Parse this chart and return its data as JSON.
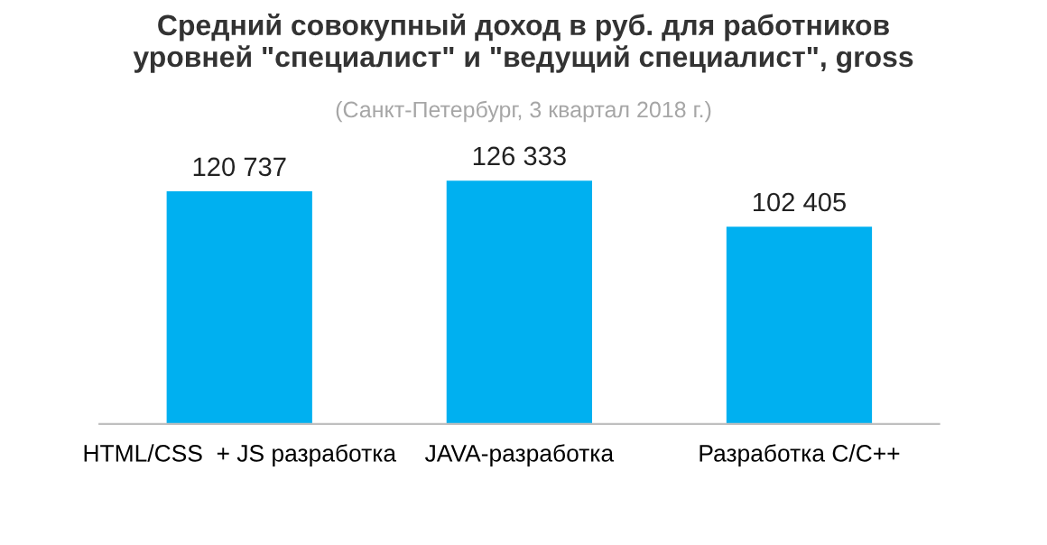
{
  "chart_data": {
    "type": "bar",
    "title": "Средний совокупный доход в руб. для работников\nуровней \"специалист\" и \"ведущий специалист\", gross",
    "subtitle": "(Санкт-Петербург, 3 квартал 2018 г.)",
    "categories": [
      "HTML/CSS  + JS разработка",
      "JAVA-разработка",
      "Разработка C/C++"
    ],
    "values": [
      120737,
      126333,
      102405
    ],
    "value_labels": [
      "120 737",
      "126 333",
      "102 405"
    ],
    "color": "#00b0f0",
    "tick_labels": "x",
    "grid": false
  }
}
